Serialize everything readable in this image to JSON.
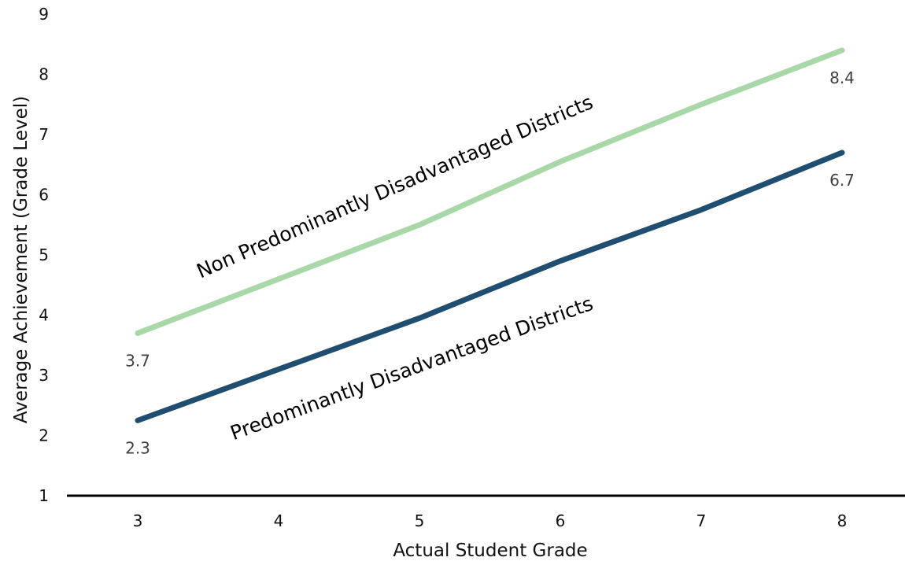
{
  "chart_data": {
    "type": "line",
    "title": "",
    "xlabel": "Actual Student Grade",
    "ylabel": "Average Achievement (Grade Level)",
    "x": [
      3,
      4,
      5,
      6,
      7,
      8
    ],
    "xlim": [
      2.5,
      8.5
    ],
    "ylim": [
      1,
      9
    ],
    "yticks": [
      1,
      2,
      3,
      4,
      5,
      6,
      7,
      8,
      9
    ],
    "grid": false,
    "legend": "none",
    "series": [
      {
        "name": "Non Predominantly Disadvantaged Districts",
        "color": "#a8d8a8",
        "values": [
          3.7,
          4.6,
          5.5,
          6.55,
          7.5,
          8.4
        ],
        "labels": {
          "start": "3.7",
          "end": "8.4"
        }
      },
      {
        "name": "Predominantly Disadvantaged Districts",
        "color": "#1f4e70",
        "values": [
          2.25,
          3.1,
          3.95,
          4.9,
          5.75,
          6.7
        ],
        "labels": {
          "start": "2.3",
          "end": "6.7"
        }
      }
    ]
  }
}
